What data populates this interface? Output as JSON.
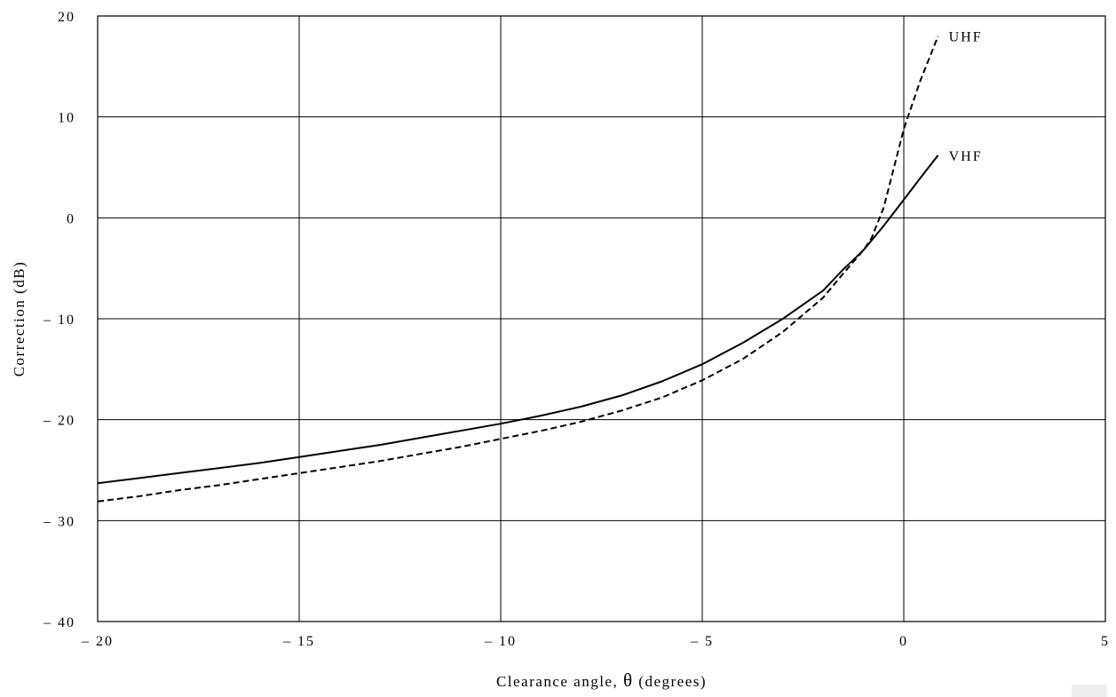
{
  "chart_data": {
    "type": "line",
    "xlabel_pre": "Clearance angle, ",
    "xlabel_symbol": "θ",
    "xlabel_post": " (degrees)",
    "ylabel": "Correction (dB)",
    "xlim": [
      -20,
      5
    ],
    "ylim": [
      -40,
      20
    ],
    "xticks": [
      -20,
      -15,
      -10,
      -5,
      0,
      5
    ],
    "yticks": [
      -40,
      -30,
      -20,
      -10,
      0,
      10,
      20
    ],
    "xtick_labels": [
      "– 20",
      "– 15",
      "– 10",
      "– 5",
      "0",
      "5"
    ],
    "ytick_labels": [
      "– 40",
      "– 30",
      "– 20",
      "– 10",
      "0",
      "10",
      "20"
    ],
    "grid": true,
    "legend": "inline labels at line ends",
    "series": [
      {
        "name": "UHF",
        "style": "dashed",
        "x": [
          -20,
          -19,
          -18,
          -17,
          -16,
          -15,
          -14,
          -13,
          -12,
          -11,
          -10,
          -9,
          -8,
          -7,
          -6,
          -5,
          -4,
          -3,
          -2,
          -1.5,
          -1,
          -0.8,
          -0.5,
          0,
          0.4,
          0.85
        ],
        "y": [
          -28.1,
          -27.6,
          -27.0,
          -26.5,
          -25.9,
          -25.3,
          -24.7,
          -24.1,
          -23.4,
          -22.7,
          -21.9,
          -21.1,
          -20.2,
          -19.1,
          -17.8,
          -16.1,
          -14.0,
          -11.3,
          -7.9,
          -5.5,
          -3.2,
          -2.0,
          1.0,
          8.8,
          13.5,
          18.0
        ]
      },
      {
        "name": "VHF",
        "style": "solid",
        "x": [
          -20,
          -19,
          -18,
          -17,
          -16,
          -15,
          -14,
          -13,
          -12,
          -11,
          -10,
          -9,
          -8,
          -7,
          -6,
          -5,
          -4,
          -3,
          -2,
          -1.5,
          -1,
          -0.5,
          0,
          0.4,
          0.85
        ],
        "y": [
          -26.3,
          -25.8,
          -25.3,
          -24.8,
          -24.3,
          -23.7,
          -23.1,
          -22.5,
          -21.8,
          -21.1,
          -20.4,
          -19.6,
          -18.7,
          -17.6,
          -16.2,
          -14.5,
          -12.4,
          -10.0,
          -7.2,
          -5.1,
          -3.2,
          -0.8,
          1.8,
          3.9,
          6.2
        ]
      }
    ]
  }
}
